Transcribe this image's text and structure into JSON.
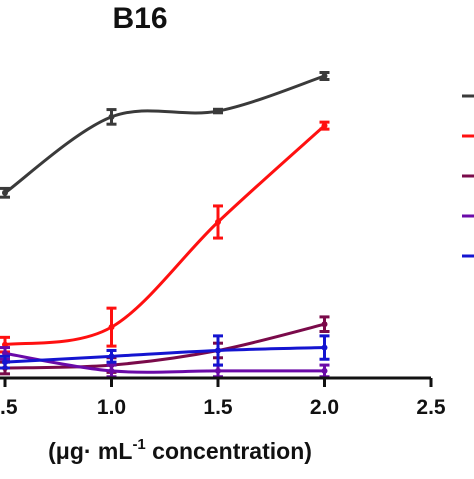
{
  "chart_data": {
    "type": "line",
    "title": "B16",
    "xlabel": "(μg· mL⁻¹ concentration)",
    "xlabel_parts": {
      "prefix": "(μg· mL",
      "superscript": "-1",
      "suffix": " concentration)"
    },
    "ylabel": "",
    "x_ticks": [
      0.5,
      1.0,
      1.5,
      2.0,
      2.5
    ],
    "x_tick_labels": [
      ".5",
      "1.0",
      "1.5",
      "2.0",
      "2.5"
    ],
    "xlim": [
      0.5,
      2.5
    ],
    "ylim": [
      0,
      100
    ],
    "grid": false,
    "legend_position": "right",
    "series": [
      {
        "color": "#3a3a3a",
        "x": [
          0.5,
          1.0,
          1.5,
          2.0
        ],
        "y": [
          60,
          86,
          88,
          100
        ],
        "err": [
          1.5,
          2.5,
          0.6,
          1.2
        ]
      },
      {
        "color": "#ff1010",
        "x": [
          0.5,
          1.0,
          1.5,
          2.0
        ],
        "y": [
          8,
          14,
          50,
          83
        ],
        "err": [
          2.5,
          6.5,
          5.5,
          1.2
        ]
      },
      {
        "color": "#7a0a4a",
        "x": [
          0.5,
          1.0,
          1.5,
          2.0
        ],
        "y": [
          0,
          1,
          6,
          15
        ],
        "err": [
          2,
          2.5,
          2.5,
          2.5
        ]
      },
      {
        "color": "#6a0aa8",
        "x": [
          0.5,
          1.0,
          1.5,
          2.0
        ],
        "y": [
          5,
          -1,
          -1,
          -1
        ],
        "err": [
          2,
          2,
          2,
          2
        ]
      },
      {
        "color": "#1414d0",
        "x": [
          0.5,
          1.0,
          1.5,
          2.0
        ],
        "y": [
          2,
          4,
          6,
          7
        ],
        "err": [
          2,
          2,
          5,
          4
        ]
      }
    ]
  }
}
